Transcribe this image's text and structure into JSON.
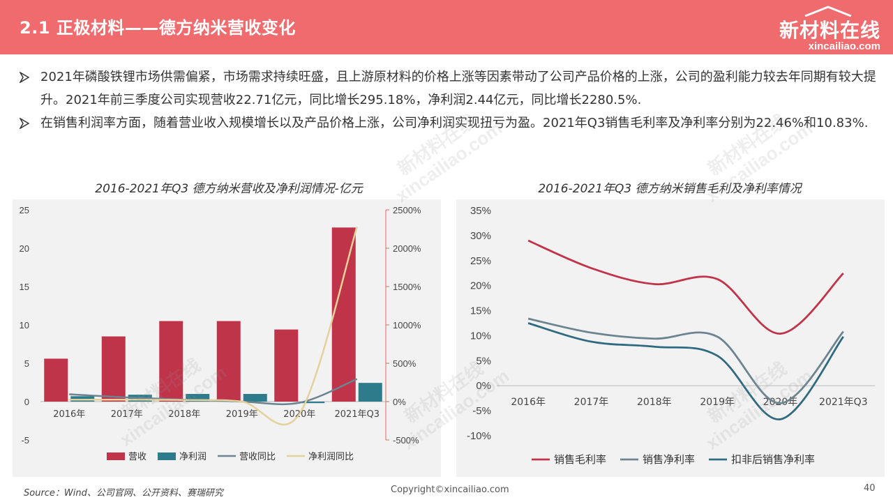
{
  "header": {
    "title": "2.1 正极材料——德方纳米营收变化",
    "logo_main": "新材料在线",
    "logo_sub": "xincailiao.com"
  },
  "bullets": [
    "2021年磷酸铁锂市场供需偏紧，市场需求持续旺盛，且上游原材料的价格上涨等因素带动了公司产品价格的上涨，公司的盈利能力较去年同期有较大提升。2021年前三季度公司实现营收22.71亿元，同比增长295.18%，净利润2.44亿元，同比增长2280.5%.",
    "在销售利润率方面，随着营业收入规模增长以及产品价格上涨，公司净利润实现扭亏为盈。2021年Q3销售毛利率及净利率分别为22.46%和10.83%."
  ],
  "footer": {
    "source": "Source：Wind、公司官网、公开资料、赛瑞研究",
    "copyright": "Copyright©xincailiao.com",
    "page": "40"
  },
  "colors": {
    "header_bg": "#ef6b6e",
    "revenue": "#c0344a",
    "net_profit": "#2e7b8c",
    "revenue_yoy": "#6b8490",
    "profit_yoy": "#e3d29b",
    "gross_margin": "#c0344a",
    "net_margin": "#6b8490",
    "deducted_net_margin": "#2e6b80"
  },
  "chart_data": [
    {
      "type": "bar",
      "title": "2016-2021年Q3 德方纳米营收及净利润情况-亿元",
      "categories": [
        "2016年",
        "2017年",
        "2018年",
        "2019年",
        "2020年",
        "2021年Q3"
      ],
      "ylim": [
        -5,
        25
      ],
      "yticks": [
        "25",
        "20",
        "15",
        "10",
        "5",
        "0",
        "-5"
      ],
      "y2lim": [
        -500,
        2500
      ],
      "y2ticks": [
        "2500%",
        "2000%",
        "1500%",
        "1000%",
        "500%",
        "0%",
        "-500%"
      ],
      "series": [
        {
          "name": "营收",
          "kind": "bar",
          "axis": "left",
          "values": [
            5.6,
            8.5,
            10.5,
            10.5,
            9.4,
            22.7
          ]
        },
        {
          "name": "净利润",
          "kind": "bar",
          "axis": "left",
          "values": [
            0.7,
            0.9,
            1.0,
            1.0,
            -0.2,
            2.44
          ]
        },
        {
          "name": "营收同比",
          "kind": "line",
          "axis": "right",
          "values": [
            95,
            55,
            25,
            0,
            -15,
            295
          ]
        },
        {
          "name": "净利润同比",
          "kind": "line",
          "axis": "right",
          "values": [
            25,
            25,
            20,
            0,
            -160,
            2280
          ]
        }
      ],
      "legend_position": "bottom"
    },
    {
      "type": "line",
      "title": "2016-2021年Q3 德方纳米销售毛利及净利率情况",
      "categories": [
        "2016年",
        "2017年",
        "2018年",
        "2019年",
        "2020年",
        "2021年Q3"
      ],
      "ylim": [
        -10,
        35
      ],
      "yticks": [
        "35%",
        "30%",
        "25%",
        "20%",
        "15%",
        "10%",
        "5%",
        "0%",
        "-5%",
        "-10%"
      ],
      "series": [
        {
          "name": "销售毛利率",
          "values": [
            29.0,
            23.5,
            20.3,
            21.3,
            10.4,
            22.46
          ]
        },
        {
          "name": "销售净利率",
          "values": [
            13.4,
            10.6,
            9.4,
            9.8,
            -3.5,
            10.83
          ]
        },
        {
          "name": "扣非后销售净利率",
          "values": [
            12.5,
            8.8,
            7.8,
            6.0,
            -6.7,
            9.8
          ]
        }
      ],
      "legend_position": "bottom"
    }
  ]
}
